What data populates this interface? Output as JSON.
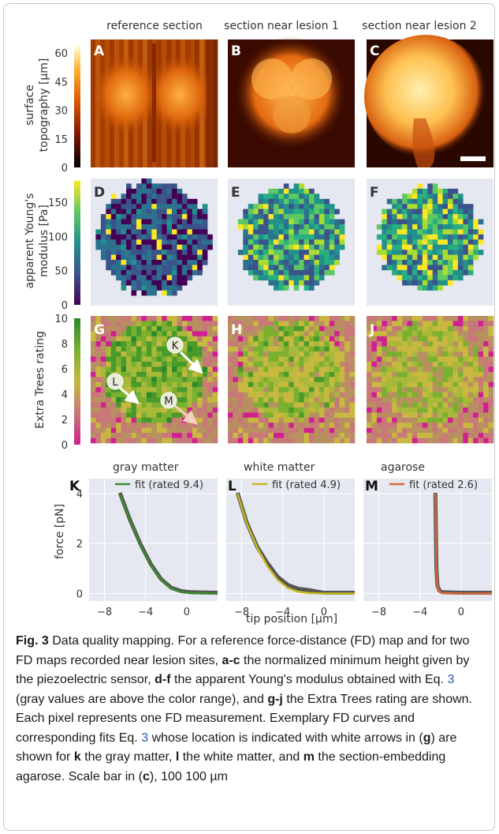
{
  "figure": {
    "columns": [
      "reference section",
      "section near lesion 1",
      "section near lesion 2"
    ],
    "row_labels": {
      "topography": [
        "surface",
        "topography [µm]"
      ],
      "modulus": [
        "apparent Young's",
        "modulus [Pa]"
      ],
      "rating": [
        "Extra Trees rating"
      ]
    },
    "colorbars": {
      "topography": {
        "ticks": [
          "60",
          "45",
          "30",
          "15",
          "0"
        ],
        "colormap": "afmhot"
      },
      "modulus": {
        "ticks": [
          "150",
          "100",
          "50",
          "0"
        ],
        "colormap": "viridis"
      },
      "rating": {
        "ticks": [
          "10",
          "8",
          "6",
          "4",
          "2",
          "0"
        ],
        "colormap": "pink-yellow-green"
      }
    },
    "panel_letters": [
      "A",
      "B",
      "C",
      "D",
      "E",
      "F",
      "G",
      "H",
      "J",
      "K",
      "L",
      "M"
    ],
    "arrow_labels": [
      "K",
      "L",
      "M"
    ],
    "colors": {
      "gray_matter_fit": "#3a8a2e",
      "white_matter_fit": "#c8b820",
      "agarose_fit": "#d8663a",
      "data_curve": "#555555",
      "plot_bg": "#e5e8f0"
    }
  },
  "chart_data": [
    {
      "type": "line",
      "title": "gray matter",
      "xlabel": "tip position [µm]",
      "ylabel": "force [pN]",
      "xlim": [
        -9.5,
        3
      ],
      "ylim": [
        -0.3,
        4.6
      ],
      "xticks": [
        "−8",
        "−4",
        "0"
      ],
      "yticks": [
        "0",
        "2",
        "4"
      ],
      "series": [
        {
          "name": "fit (rated 9.4)",
          "x": [
            -6.5,
            -5.5,
            -4.5,
            -3.5,
            -2.5,
            -1.5,
            -0.5,
            0.5,
            3
          ],
          "y": [
            4.0,
            2.9,
            1.95,
            1.15,
            0.55,
            0.2,
            0.06,
            0.02,
            0.0
          ]
        }
      ]
    },
    {
      "type": "line",
      "title": "white matter",
      "xlabel": "tip position [µm]",
      "ylabel": "force [pN]",
      "xlim": [
        -9.5,
        3
      ],
      "ylim": [
        -0.3,
        4.6
      ],
      "xticks": [
        "−8",
        "−4",
        "0"
      ],
      "yticks": [
        "0",
        "2",
        "4"
      ],
      "series": [
        {
          "name": "fit (rated 4.9)",
          "x": [
            -8.4,
            -7.5,
            -6.5,
            -5.5,
            -4.5,
            -3.5,
            -2.5,
            -1.5,
            0,
            3
          ],
          "y": [
            4.0,
            2.8,
            1.85,
            1.1,
            0.55,
            0.22,
            0.07,
            0.02,
            0.0,
            0.0
          ]
        }
      ]
    },
    {
      "type": "line",
      "title": "agarose",
      "xlabel": "tip position [µm]",
      "ylabel": "force [pN]",
      "xlim": [
        -9.5,
        3
      ],
      "ylim": [
        -0.3,
        4.6
      ],
      "xticks": [
        "−8",
        "−4",
        "0"
      ],
      "yticks": [
        "0",
        "2",
        "4"
      ],
      "series": [
        {
          "name": "fit (rated 2.6)",
          "x": [
            -2.5,
            -2.45,
            -2.4,
            -2.3,
            -2.1,
            -1.8,
            0,
            3
          ],
          "y": [
            4.0,
            2.5,
            1.0,
            0.3,
            0.08,
            0.02,
            0.0,
            0.0
          ]
        }
      ]
    }
  ],
  "caption": {
    "label": "Fig. 3",
    "title": "Data quality mapping.",
    "t1": "For a reference force-distance (FD) map and for two FD maps recorded near lesion sites,",
    "b1": "a-c",
    "t2": "the normalized minimum height given by the piezoelectric sensor,",
    "b2": "d-f",
    "t3": "the apparent Young's modulus obtained with Eq.",
    "eq1": "3",
    "t4": "(gray values are above the color range), and",
    "b3": "g-j",
    "t5": "the Extra Trees rating are shown. Each pixel represents one FD measurement. Exemplary FD curves and corresponding fits Eq.",
    "eq2": "3",
    "t6": "whose location is indicated with white arrows in (",
    "b4": "g",
    "t7": ") are shown for",
    "b5": "k",
    "t8": "the gray matter,",
    "b6": "l",
    "t9": "the white matter, and",
    "b7": "m",
    "t10": "the section-embedding agarose. Scale bar in (",
    "b8": "c",
    "t11": "), 100 100 µm"
  }
}
